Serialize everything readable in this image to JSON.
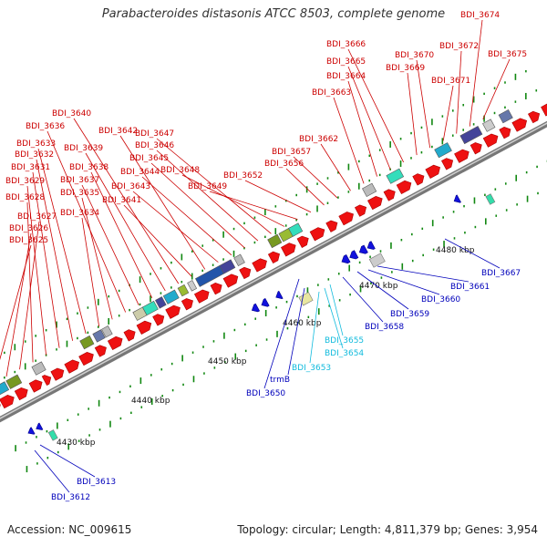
{
  "title": "Parabacteroides distasonis ATCC 8503, complete genome",
  "footer": {
    "accession": "Accession: NC_009615",
    "stats": "Topology: circular; Length: 4,811,379 bp; Genes: 3,954"
  },
  "colors": {
    "forward_gene": "#ee1111",
    "reverse_gene": "#1111dd",
    "label_forward": "#cc0000",
    "label_reverse": "#0000bb",
    "label_cyan": "#11bbdd",
    "backbone": "#999999",
    "tick": "#118811"
  },
  "scale_labels": [
    "4430 kbp",
    "4440 kbp",
    "4450 kbp",
    "4460 kbp",
    "4470 kbp",
    "4480 kbp"
  ],
  "forward_labels": [
    "BDI_3625",
    "BDI_3626",
    "BDI_3627",
    "BDI_3628",
    "BDI_3629",
    "BDI_3631",
    "BDI_3632",
    "BDI_3633",
    "BDI_3634",
    "BDI_3635",
    "BDI_3636",
    "BDI_3637",
    "BDI_3638",
    "BDI_3639",
    "BDI_3640",
    "BDI_3641",
    "BDI_3642",
    "BDI_3643",
    "BDI_3644",
    "BDI_3645",
    "BDI_3646",
    "BDI_3647",
    "BDI_3648",
    "BDI_3649",
    "BDI_3652",
    "BDI_3656",
    "BDI_3657",
    "BDI_3662",
    "BDI_3663",
    "BDI_3664",
    "BDI_3665",
    "BDI_3666",
    "BDI_3669",
    "BDI_3670",
    "BDI_3671",
    "BDI_3672",
    "BDI_3674",
    "BDI_3675"
  ],
  "reverse_labels": [
    "BDI_3612",
    "BDI_3613",
    "BDI_3650",
    "trmB",
    "BDI_3653",
    "BDI_3654",
    "BDI_3655",
    "BDI_3658",
    "BDI_3659",
    "BDI_3660",
    "BDI_3661",
    "BDI_3667"
  ]
}
